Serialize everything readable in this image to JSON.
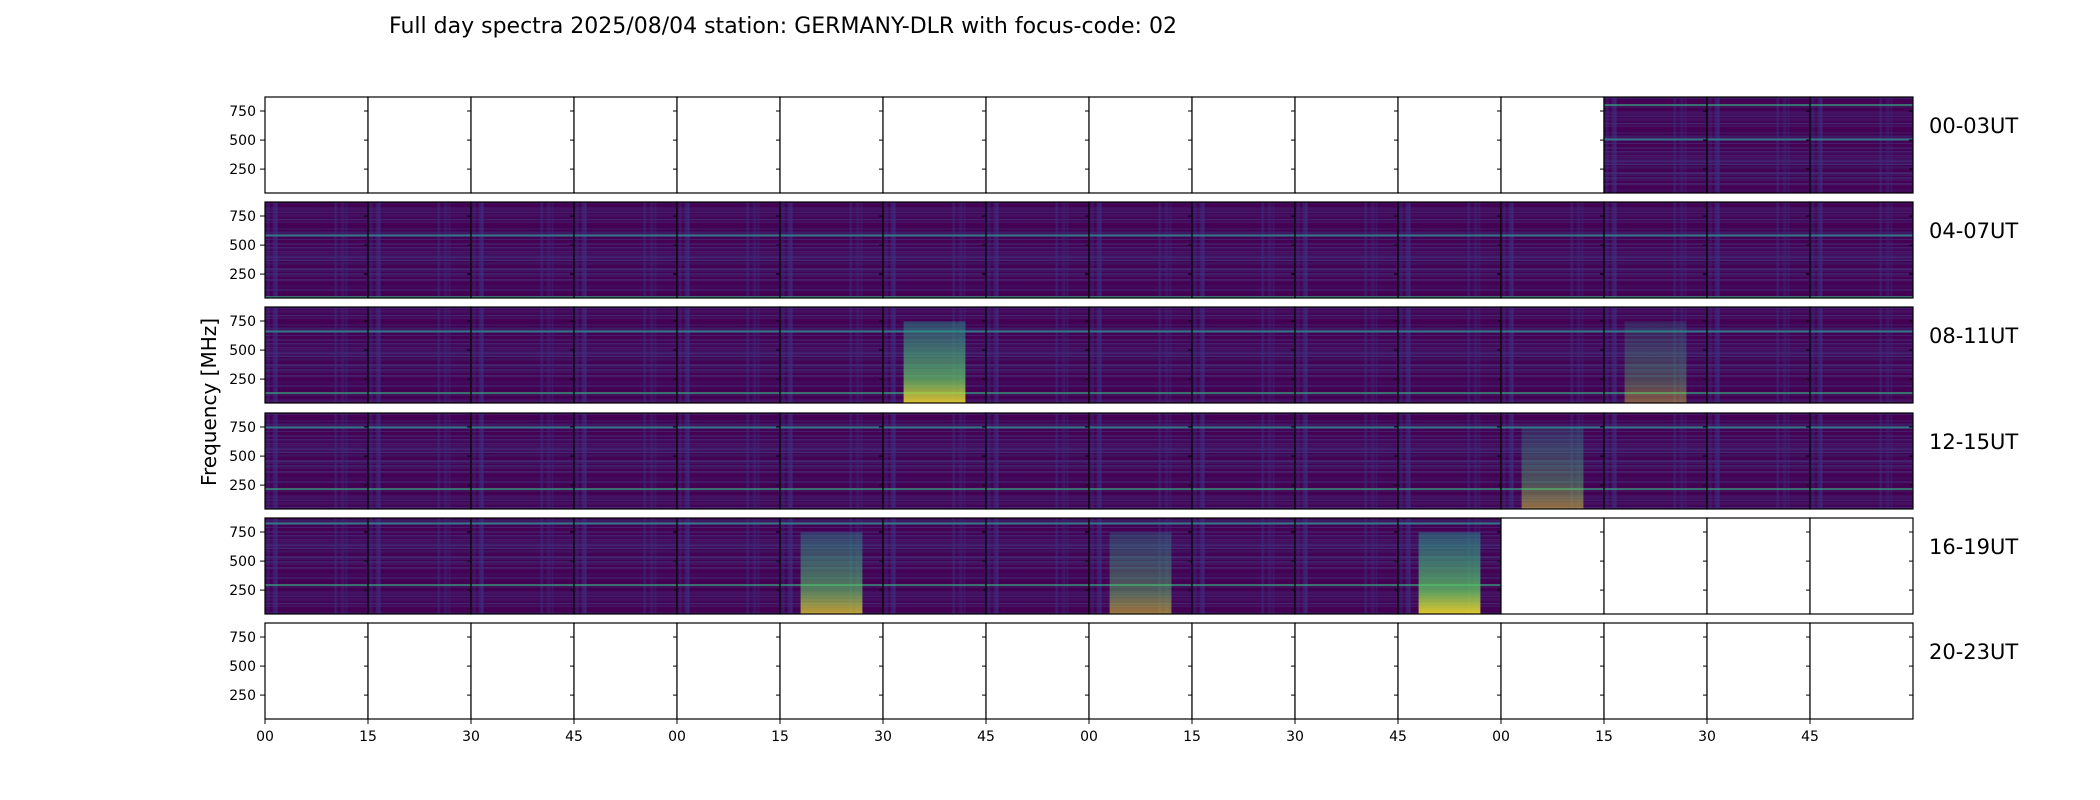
{
  "chart_data": {
    "type": "heatmap",
    "title": "Full day spectra 2025/08/04 station: GERMANY-DLR with focus-code: 02",
    "ylabel": "Frequency [MHz]",
    "ylim": [
      45,
      870
    ],
    "y_ticks": [
      "250",
      "500",
      "750"
    ],
    "y_tick_values": [
      250,
      500,
      750
    ],
    "x_tick_labels": [
      "00",
      "15",
      "30",
      "45",
      "00",
      "15",
      "30",
      "45",
      "00",
      "15",
      "30",
      "45",
      "00",
      "15",
      "30",
      "45"
    ],
    "colormap": [
      "#440154",
      "#3b528b",
      "#21918c",
      "#5ec962",
      "#fde725"
    ],
    "grid": false,
    "rows": [
      {
        "label": "00-03UT",
        "panels": [
          0,
          0,
          0,
          0,
          0,
          0,
          0,
          0,
          0,
          0,
          0,
          0,
          0,
          1,
          1,
          1
        ]
      },
      {
        "label": "04-07UT",
        "panels": [
          1,
          1,
          1,
          1,
          1,
          1,
          1,
          1,
          1,
          1,
          1,
          1,
          1,
          1,
          1,
          1
        ]
      },
      {
        "label": "08-11UT",
        "panels": [
          1,
          1,
          1,
          1,
          1,
          1,
          1,
          1,
          1,
          1,
          1,
          1,
          1,
          1,
          1,
          1
        ]
      },
      {
        "label": "12-15UT",
        "panels": [
          1,
          1,
          1,
          1,
          1,
          1,
          1,
          1,
          1,
          1,
          1,
          1,
          1,
          1,
          1,
          1
        ]
      },
      {
        "label": "16-19UT",
        "panels": [
          1,
          1,
          1,
          1,
          1,
          1,
          1,
          1,
          1,
          1,
          1,
          1,
          0,
          0,
          0,
          0
        ]
      },
      {
        "label": "20-23UT",
        "panels": [
          0,
          0,
          0,
          0,
          0,
          0,
          0,
          0,
          0,
          0,
          0,
          0,
          0,
          0,
          0,
          0
        ]
      }
    ],
    "bright_events": [
      {
        "row": 2,
        "panel": 6,
        "intensity": 0.9
      },
      {
        "row": 4,
        "panel": 5,
        "intensity": 0.75
      },
      {
        "row": 4,
        "panel": 8,
        "intensity": 0.55
      },
      {
        "row": 4,
        "panel": 11,
        "intensity": 0.95
      },
      {
        "row": 3,
        "panel": 12,
        "intensity": 0.5
      },
      {
        "row": 2,
        "panel": 13,
        "intensity": 0.4
      }
    ]
  }
}
